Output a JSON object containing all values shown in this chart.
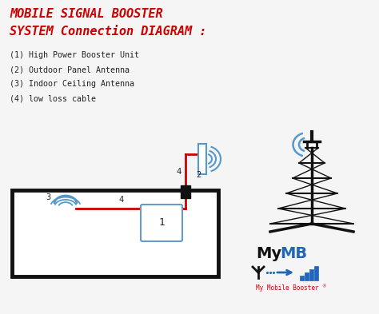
{
  "title_line1": "MOBILE SIGNAL BOOSTER",
  "title_line2": "SYSTEM Connection DIAGRAM :",
  "legend_items": [
    "(1) High Power Booster Unit",
    "(2) Outdoor Panel Antenna",
    "(3) Indoor Ceiling Antenna",
    "(4) low loss cable"
  ],
  "bg_color": "#f5f5f5",
  "title_color": "#cc0000",
  "text_color": "#222222",
  "red_cable": "#cc0000",
  "black_wall": "#111111",
  "blue_antenna": "#5599cc",
  "booster_blue": "#6699cc",
  "tower_color": "#111111",
  "logo_black": "#111111",
  "logo_blue": "#2266bb",
  "logo_red": "#cc0000"
}
